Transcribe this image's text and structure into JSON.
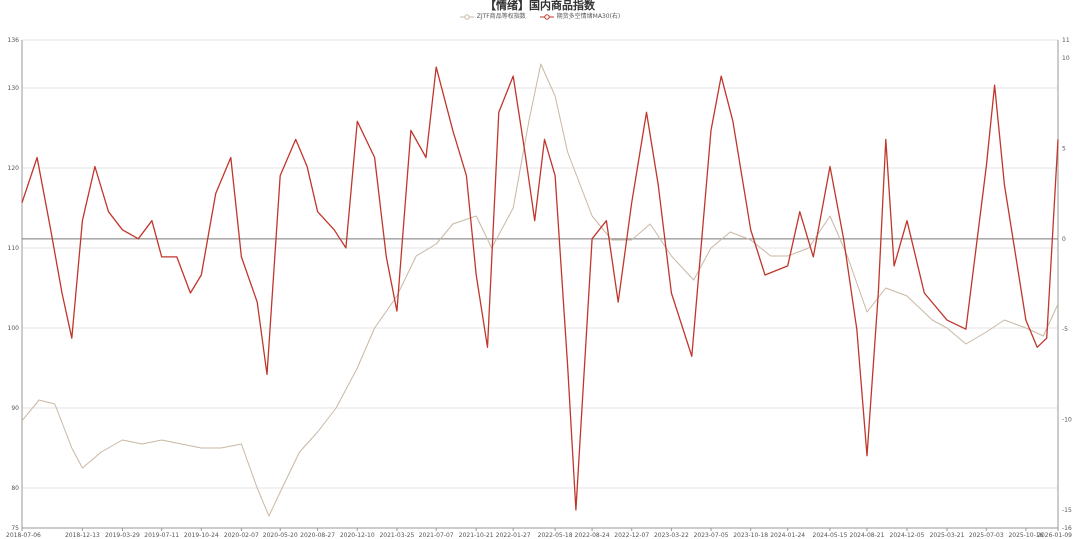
{
  "chart_data": {
    "type": "line",
    "title": "【情绪】国内商品指数",
    "x_tick_labels": [
      "2018-07-06",
      "2018-12-13",
      "2019-03-29",
      "2019-07-11",
      "2019-10-24",
      "2020-02-07",
      "2020-05-20",
      "2020-08-27",
      "2020-12-10",
      "2021-03-25",
      "2021-07-07",
      "2021-10-21",
      "2022-01-27",
      "2022-05-18",
      "2022-08-24",
      "2022-12-07",
      "2023-03-22",
      "2023-07-05",
      "2023-10-18",
      "2024-01-24",
      "2024-05-15",
      "2024-08-21",
      "2024-12-05",
      "2025-03-21",
      "2025-07-03",
      "2025-10-16",
      "2026-01-09"
    ],
    "x_range": [
      "2018-07-06",
      "2026-01-09"
    ],
    "y_left": {
      "range": [
        75,
        136
      ],
      "ticks": [
        75,
        80,
        90,
        100,
        110,
        120,
        130,
        136
      ]
    },
    "y_right": {
      "range": [
        -16,
        11
      ],
      "ticks": [
        -16,
        -15,
        -10,
        -5,
        0,
        5,
        10,
        11
      ]
    },
    "zero_line_right": 0,
    "grid": true,
    "legend_position": "top-center",
    "series": [
      {
        "name": "ZJTF商品等权指数",
        "axis": "left",
        "color": "#c9b8a4",
        "points": [
          [
            "2018-07-06",
            88.4
          ],
          [
            "2018-08-20",
            91.0
          ],
          [
            "2018-10-01",
            90.5
          ],
          [
            "2018-11-15",
            85.0
          ],
          [
            "2018-12-13",
            82.5
          ],
          [
            "2019-02-01",
            84.5
          ],
          [
            "2019-03-29",
            86.0
          ],
          [
            "2019-05-20",
            85.5
          ],
          [
            "2019-07-11",
            86.0
          ],
          [
            "2019-09-01",
            85.5
          ],
          [
            "2019-10-24",
            85.0
          ],
          [
            "2019-12-15",
            85.0
          ],
          [
            "2020-02-07",
            85.5
          ],
          [
            "2020-03-20",
            80.0
          ],
          [
            "2020-04-20",
            76.5
          ],
          [
            "2020-05-20",
            79.5
          ],
          [
            "2020-07-10",
            84.5
          ],
          [
            "2020-08-27",
            87.0
          ],
          [
            "2020-10-15",
            90.0
          ],
          [
            "2020-12-10",
            95.0
          ],
          [
            "2021-01-25",
            100.0
          ],
          [
            "2021-03-25",
            104.0
          ],
          [
            "2021-05-15",
            109.0
          ],
          [
            "2021-07-07",
            110.5
          ],
          [
            "2021-08-20",
            113.0
          ],
          [
            "2021-10-21",
            114.0
          ],
          [
            "2021-12-01",
            110.0
          ],
          [
            "2022-01-27",
            115.0
          ],
          [
            "2022-03-10",
            126.0
          ],
          [
            "2022-04-10",
            133.0
          ],
          [
            "2022-05-18",
            129.0
          ],
          [
            "2022-06-20",
            122.0
          ],
          [
            "2022-08-24",
            114.0
          ],
          [
            "2022-10-15",
            111.0
          ],
          [
            "2022-12-07",
            111.0
          ],
          [
            "2023-01-25",
            113.0
          ],
          [
            "2023-03-22",
            109.0
          ],
          [
            "2023-05-20",
            106.0
          ],
          [
            "2023-07-05",
            110.0
          ],
          [
            "2023-08-25",
            112.0
          ],
          [
            "2023-10-18",
            111.0
          ],
          [
            "2023-12-10",
            109.0
          ],
          [
            "2024-01-24",
            109.0
          ],
          [
            "2024-03-20",
            110.0
          ],
          [
            "2024-05-15",
            114.0
          ],
          [
            "2024-06-30",
            109.0
          ],
          [
            "2024-08-21",
            102.0
          ],
          [
            "2024-10-10",
            105.0
          ],
          [
            "2024-12-05",
            104.0
          ],
          [
            "2025-02-10",
            101.0
          ],
          [
            "2025-03-21",
            100.0
          ],
          [
            "2025-05-10",
            98.0
          ],
          [
            "2025-07-03",
            99.5
          ],
          [
            "2025-08-20",
            101.0
          ],
          [
            "2025-10-16",
            100.0
          ],
          [
            "2025-12-01",
            99.0
          ],
          [
            "2026-01-09",
            103.0
          ]
        ]
      },
      {
        "name": "期货多空情绪MA30(右)",
        "axis": "right",
        "color": "#c0362c",
        "points": [
          [
            "2018-07-06",
            2.0
          ],
          [
            "2018-08-15",
            4.5
          ],
          [
            "2018-09-20",
            0.5
          ],
          [
            "2018-10-20",
            -3.0
          ],
          [
            "2018-11-15",
            -5.5
          ],
          [
            "2018-12-13",
            1.0
          ],
          [
            "2019-01-15",
            4.0
          ],
          [
            "2019-02-20",
            1.5
          ],
          [
            "2019-03-29",
            0.5
          ],
          [
            "2019-05-10",
            0.0
          ],
          [
            "2019-06-15",
            1.0
          ],
          [
            "2019-07-11",
            -1.0
          ],
          [
            "2019-08-20",
            -1.0
          ],
          [
            "2019-09-25",
            -3.0
          ],
          [
            "2019-10-24",
            -2.0
          ],
          [
            "2019-12-01",
            2.5
          ],
          [
            "2020-01-10",
            4.5
          ],
          [
            "2020-02-07",
            -1.0
          ],
          [
            "2020-03-20",
            -3.5
          ],
          [
            "2020-04-15",
            -7.5
          ],
          [
            "2020-05-20",
            3.5
          ],
          [
            "2020-06-30",
            5.5
          ],
          [
            "2020-07-30",
            4.0
          ],
          [
            "2020-08-27",
            1.5
          ],
          [
            "2020-10-10",
            0.5
          ],
          [
            "2020-11-10",
            -0.5
          ],
          [
            "2020-12-10",
            6.5
          ],
          [
            "2021-01-25",
            4.5
          ],
          [
            "2021-02-25",
            -1.0
          ],
          [
            "2021-03-25",
            -4.0
          ],
          [
            "2021-05-01",
            6.0
          ],
          [
            "2021-06-10",
            4.5
          ],
          [
            "2021-07-07",
            9.5
          ],
          [
            "2021-08-20",
            6.0
          ],
          [
            "2021-09-25",
            3.5
          ],
          [
            "2021-10-21",
            -2.0
          ],
          [
            "2021-11-20",
            -6.0
          ],
          [
            "2021-12-20",
            7.0
          ],
          [
            "2022-01-27",
            9.0
          ],
          [
            "2022-03-01",
            4.5
          ],
          [
            "2022-03-25",
            1.0
          ],
          [
            "2022-04-20",
            5.5
          ],
          [
            "2022-05-18",
            3.5
          ],
          [
            "2022-06-20",
            -7.0
          ],
          [
            "2022-07-12",
            -15.0
          ],
          [
            "2022-08-24",
            0.0
          ],
          [
            "2022-10-01",
            1.0
          ],
          [
            "2022-11-01",
            -3.5
          ],
          [
            "2022-12-07",
            2.0
          ],
          [
            "2023-01-15",
            7.0
          ],
          [
            "2023-02-15",
            3.0
          ],
          [
            "2023-03-22",
            -3.0
          ],
          [
            "2023-05-15",
            -6.5
          ],
          [
            "2023-07-05",
            6.0
          ],
          [
            "2023-08-01",
            9.0
          ],
          [
            "2023-09-01",
            6.5
          ],
          [
            "2023-10-18",
            0.5
          ],
          [
            "2023-11-25",
            -2.0
          ],
          [
            "2024-01-24",
            -1.5
          ],
          [
            "2024-02-25",
            1.5
          ],
          [
            "2024-04-01",
            -1.0
          ],
          [
            "2024-05-15",
            4.0
          ],
          [
            "2024-06-20",
            0.0
          ],
          [
            "2024-07-25",
            -5.0
          ],
          [
            "2024-08-21",
            -12.0
          ],
          [
            "2024-09-20",
            -3.0
          ],
          [
            "2024-10-10",
            5.5
          ],
          [
            "2024-11-01",
            -1.5
          ],
          [
            "2024-12-05",
            1.0
          ],
          [
            "2025-01-20",
            -3.0
          ],
          [
            "2025-03-21",
            -4.5
          ],
          [
            "2025-05-10",
            -5.0
          ],
          [
            "2025-07-03",
            4.0
          ],
          [
            "2025-07-25",
            8.5
          ],
          [
            "2025-08-20",
            3.0
          ],
          [
            "2025-10-16",
            -4.5
          ],
          [
            "2025-11-15",
            -6.0
          ],
          [
            "2025-12-10",
            -5.5
          ],
          [
            "2026-01-09",
            5.5
          ]
        ]
      }
    ]
  }
}
